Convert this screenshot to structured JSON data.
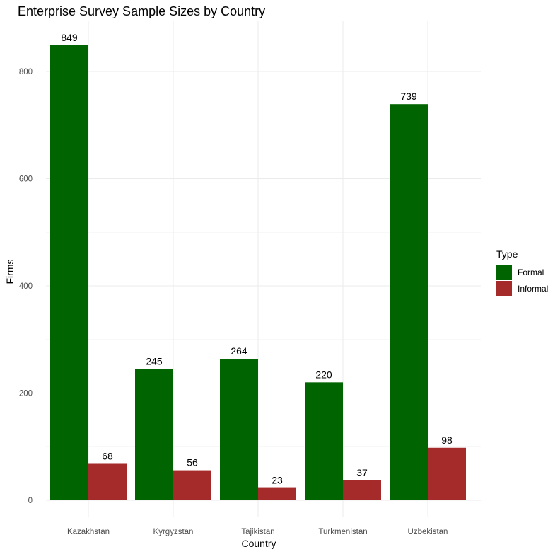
{
  "chart_data": {
    "type": "bar",
    "title": "Enterprise Survey Sample Sizes by Country",
    "xlabel": "Country",
    "ylabel": "Firms",
    "categories": [
      "Kazakhstan",
      "Kyrgyzstan",
      "Tajikistan",
      "Turkmenistan",
      "Uzbekistan"
    ],
    "series": [
      {
        "name": "Formal",
        "color": "#006400",
        "values": [
          849,
          245,
          264,
          220,
          739
        ]
      },
      {
        "name": "Informal",
        "color": "#A52A2A",
        "values": [
          68,
          56,
          23,
          37,
          98
        ]
      }
    ],
    "ylim": [
      0,
      880
    ],
    "yticks": [
      0,
      200,
      400,
      600,
      800
    ],
    "grid": true,
    "legend": {
      "title": "Type",
      "position": "right"
    }
  }
}
